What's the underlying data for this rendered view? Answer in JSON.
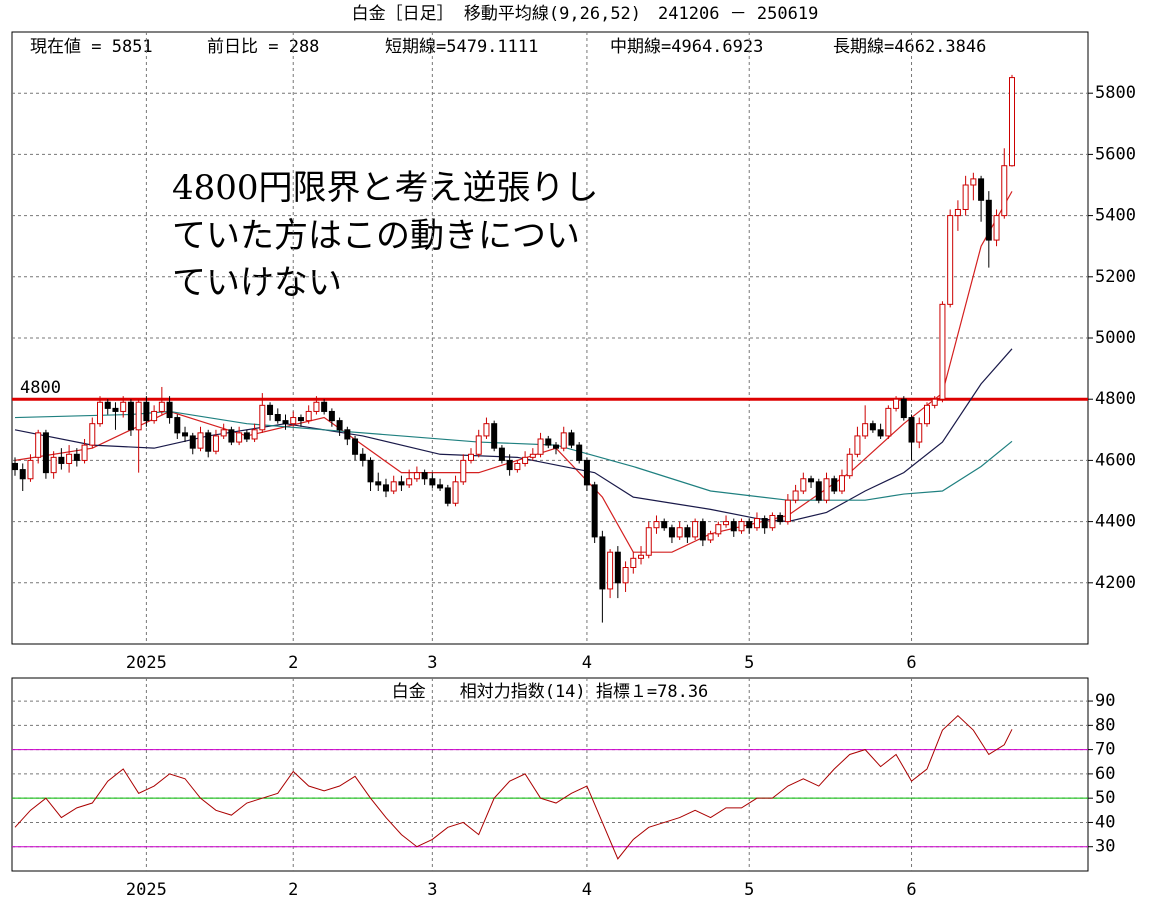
{
  "chart_data": [
    {
      "type": "candlestick",
      "title": "白金［日足］ 移動平均線(9,26,52)　241206 － 250619",
      "info": [
        "現在値 = 5851",
        "前日比 = 288",
        "短期線=5479.1111",
        "中期線=4964.6923",
        "長期線=4662.3846"
      ],
      "annotation": [
        "4800円限界と考え逆張りし",
        "ていた方はこの動きについ",
        "ていけない"
      ],
      "ohlc": [
        [
          4590,
          4610,
          4550,
          4570
        ],
        [
          4570,
          4590,
          4500,
          4540
        ],
        [
          4540,
          4620,
          4530,
          4600
        ],
        [
          4610,
          4700,
          4590,
          4690
        ],
        [
          4690,
          4700,
          4540,
          4560
        ],
        [
          4560,
          4630,
          4540,
          4610
        ],
        [
          4610,
          4640,
          4570,
          4590
        ],
        [
          4590,
          4650,
          4560,
          4620
        ],
        [
          4620,
          4640,
          4580,
          4600
        ],
        [
          4600,
          4670,
          4590,
          4650
        ],
        [
          4650,
          4740,
          4640,
          4720
        ],
        [
          4720,
          4810,
          4710,
          4790
        ],
        [
          4790,
          4800,
          4750,
          4770
        ],
        [
          4770,
          4790,
          4700,
          4760
        ],
        [
          4760,
          4810,
          4740,
          4790
        ],
        [
          4790,
          4800,
          4680,
          4700
        ],
        [
          4700,
          4800,
          4560,
          4790
        ],
        [
          4790,
          4810,
          4710,
          4730
        ],
        [
          4730,
          4780,
          4720,
          4760
        ],
        [
          4760,
          4840,
          4750,
          4790
        ],
        [
          4790,
          4810,
          4720,
          4740
        ],
        [
          4740,
          4750,
          4670,
          4690
        ],
        [
          4690,
          4710,
          4660,
          4680
        ],
        [
          4680,
          4690,
          4620,
          4640
        ],
        [
          4640,
          4710,
          4630,
          4690
        ],
        [
          4690,
          4700,
          4610,
          4630
        ],
        [
          4630,
          4700,
          4620,
          4680
        ],
        [
          4680,
          4720,
          4670,
          4700
        ],
        [
          4700,
          4710,
          4650,
          4660
        ],
        [
          4660,
          4710,
          4650,
          4690
        ],
        [
          4690,
          4700,
          4660,
          4670
        ],
        [
          4670,
          4720,
          4660,
          4700
        ],
        [
          4700,
          4820,
          4690,
          4780
        ],
        [
          4780,
          4790,
          4730,
          4750
        ],
        [
          4750,
          4770,
          4720,
          4730
        ],
        [
          4730,
          4750,
          4700,
          4720
        ],
        [
          4720,
          4760,
          4710,
          4740
        ],
        [
          4740,
          4750,
          4710,
          4730
        ],
        [
          4730,
          4780,
          4720,
          4760
        ],
        [
          4760,
          4810,
          4750,
          4790
        ],
        [
          4790,
          4800,
          4750,
          4760
        ],
        [
          4760,
          4770,
          4710,
          4730
        ],
        [
          4730,
          4740,
          4680,
          4700
        ],
        [
          4700,
          4710,
          4650,
          4670
        ],
        [
          4670,
          4680,
          4600,
          4620
        ],
        [
          4620,
          4640,
          4580,
          4600
        ],
        [
          4600,
          4610,
          4500,
          4530
        ],
        [
          4530,
          4560,
          4500,
          4520
        ],
        [
          4520,
          4540,
          4480,
          4500
        ],
        [
          4500,
          4550,
          4490,
          4530
        ],
        [
          4530,
          4550,
          4500,
          4520
        ],
        [
          4520,
          4570,
          4510,
          4540
        ],
        [
          4540,
          4580,
          4530,
          4560
        ],
        [
          4560,
          4570,
          4520,
          4540
        ],
        [
          4540,
          4560,
          4510,
          4520
        ],
        [
          4520,
          4540,
          4500,
          4510
        ],
        [
          4510,
          4520,
          4450,
          4460
        ],
        [
          4460,
          4550,
          4450,
          4530
        ],
        [
          4530,
          4620,
          4520,
          4600
        ],
        [
          4600,
          4640,
          4590,
          4620
        ],
        [
          4620,
          4700,
          4610,
          4680
        ],
        [
          4680,
          4740,
          4670,
          4720
        ],
        [
          4720,
          4730,
          4630,
          4640
        ],
        [
          4640,
          4650,
          4590,
          4600
        ],
        [
          4600,
          4620,
          4550,
          4570
        ],
        [
          4570,
          4600,
          4560,
          4590
        ],
        [
          4590,
          4630,
          4580,
          4610
        ],
        [
          4610,
          4640,
          4600,
          4620
        ],
        [
          4620,
          4690,
          4610,
          4670
        ],
        [
          4670,
          4680,
          4640,
          4650
        ],
        [
          4650,
          4660,
          4620,
          4640
        ],
        [
          4640,
          4710,
          4630,
          4690
        ],
        [
          4690,
          4700,
          4640,
          4650
        ],
        [
          4650,
          4660,
          4590,
          4600
        ],
        [
          4600,
          4610,
          4500,
          4520
        ],
        [
          4520,
          4530,
          4330,
          4350
        ],
        [
          4350,
          4370,
          4070,
          4180
        ],
        [
          4180,
          4310,
          4150,
          4300
        ],
        [
          4300,
          4320,
          4150,
          4200
        ],
        [
          4200,
          4270,
          4170,
          4250
        ],
        [
          4250,
          4300,
          4230,
          4280
        ],
        [
          4280,
          4320,
          4260,
          4290
        ],
        [
          4290,
          4400,
          4280,
          4380
        ],
        [
          4380,
          4420,
          4360,
          4400
        ],
        [
          4400,
          4410,
          4370,
          4380
        ],
        [
          4380,
          4390,
          4330,
          4350
        ],
        [
          4350,
          4400,
          4340,
          4380
        ],
        [
          4380,
          4390,
          4330,
          4350
        ],
        [
          4350,
          4410,
          4340,
          4400
        ],
        [
          4400,
          4410,
          4320,
          4340
        ],
        [
          4340,
          4370,
          4330,
          4360
        ],
        [
          4360,
          4400,
          4350,
          4390
        ],
        [
          4390,
          4420,
          4380,
          4400
        ],
        [
          4400,
          4410,
          4350,
          4370
        ],
        [
          4370,
          4410,
          4360,
          4400
        ],
        [
          4400,
          4410,
          4360,
          4380
        ],
        [
          4380,
          4430,
          4370,
          4410
        ],
        [
          4410,
          4420,
          4360,
          4380
        ],
        [
          4380,
          4430,
          4370,
          4420
        ],
        [
          4420,
          4430,
          4390,
          4400
        ],
        [
          4400,
          4490,
          4390,
          4470
        ],
        [
          4470,
          4520,
          4460,
          4500
        ],
        [
          4500,
          4560,
          4490,
          4540
        ],
        [
          4540,
          4550,
          4510,
          4530
        ],
        [
          4530,
          4540,
          4460,
          4470
        ],
        [
          4470,
          4560,
          4460,
          4540
        ],
        [
          4540,
          4550,
          4490,
          4500
        ],
        [
          4500,
          4570,
          4490,
          4550
        ],
        [
          4550,
          4640,
          4540,
          4620
        ],
        [
          4620,
          4710,
          4610,
          4680
        ],
        [
          4680,
          4780,
          4670,
          4720
        ],
        [
          4720,
          4730,
          4690,
          4700
        ],
        [
          4700,
          4720,
          4670,
          4680
        ],
        [
          4680,
          4780,
          4670,
          4770
        ],
        [
          4770,
          4810,
          4760,
          4800
        ],
        [
          4800,
          4810,
          4730,
          4740
        ],
        [
          4740,
          4750,
          4600,
          4660
        ],
        [
          4660,
          4740,
          4640,
          4720
        ],
        [
          4720,
          4790,
          4710,
          4780
        ],
        [
          4780,
          4810,
          4770,
          4800
        ],
        [
          4800,
          5120,
          4790,
          5110
        ],
        [
          5110,
          5420,
          5100,
          5400
        ],
        [
          5400,
          5450,
          5350,
          5420
        ],
        [
          5420,
          5530,
          5400,
          5500
        ],
        [
          5500,
          5540,
          5450,
          5520
        ],
        [
          5520,
          5530,
          5380,
          5450
        ],
        [
          5450,
          5480,
          5230,
          5320
        ],
        [
          5320,
          5420,
          5300,
          5400
        ],
        [
          5400,
          5620,
          5390,
          5563
        ],
        [
          5563,
          5860,
          5560,
          5851
        ]
      ],
      "up_color": "#cc0000",
      "down_color": "#000000",
      "series": [
        {
          "color": "#d42020",
          "x": [
            0,
            10,
            20,
            30,
            40,
            50,
            60,
            70,
            76,
            80,
            85,
            90,
            100,
            108,
            115,
            120,
            125,
            129
          ],
          "values": [
            4600,
            4640,
            4760,
            4680,
            4740,
            4560,
            4560,
            4640,
            4480,
            4300,
            4300,
            4360,
            4420,
            4560,
            4720,
            4820,
            5300,
            5479.1111
          ]
        },
        {
          "color": "#1a1a4a",
          "x": [
            0,
            10,
            18,
            25,
            35,
            45,
            55,
            65,
            75,
            80,
            85,
            90,
            96,
            100,
            105,
            110,
            115,
            120,
            125,
            129
          ],
          "values": [
            4700,
            4650,
            4640,
            4680,
            4720,
            4680,
            4620,
            4610,
            4560,
            4480,
            4460,
            4440,
            4410,
            4400,
            4430,
            4500,
            4560,
            4660,
            4850,
            4964.6923
          ]
        },
        {
          "color": "#1f8080",
          "x": [
            0,
            15,
            20,
            30,
            40,
            50,
            60,
            70,
            80,
            90,
            100,
            110,
            115,
            120,
            125,
            129
          ],
          "values": [
            4740,
            4750,
            4760,
            4720,
            4700,
            4680,
            4660,
            4650,
            4580,
            4500,
            4470,
            4470,
            4490,
            4500,
            4580,
            4662.3846
          ]
        }
      ],
      "reference_line": 4800,
      "reference_color": "#dd0000",
      "ylim": [
        4000,
        6000
      ],
      "yticks": [
        4200,
        4400,
        4600,
        4800,
        5000,
        5200,
        5400,
        5600,
        5800
      ],
      "xlim": [
        0,
        129
      ],
      "xticks": [
        {
          "value": 17,
          "label": "2025"
        },
        {
          "value": 36,
          "label": "2"
        },
        {
          "value": 54,
          "label": "3"
        },
        {
          "value": 74,
          "label": "4"
        },
        {
          "value": 95,
          "label": "5"
        },
        {
          "value": 116,
          "label": "6"
        }
      ],
      "grid": true
    },
    {
      "type": "line",
      "title": "白金　　相対力指数(14) 指標１=78.36",
      "color": "#aa0000",
      "x": [
        0,
        2,
        4,
        6,
        8,
        10,
        12,
        14,
        16,
        18,
        20,
        22,
        24,
        26,
        28,
        30,
        32,
        34,
        36,
        38,
        40,
        42,
        44,
        46,
        48,
        50,
        52,
        54,
        56,
        58,
        60,
        62,
        64,
        66,
        68,
        70,
        72,
        74,
        76,
        78,
        80,
        82,
        84,
        86,
        88,
        90,
        92,
        94,
        96,
        98,
        100,
        102,
        104,
        106,
        108,
        110,
        112,
        114,
        116,
        118,
        120,
        122,
        124,
        126,
        128,
        129
      ],
      "values": [
        38,
        45,
        50,
        42,
        46,
        48,
        57,
        62,
        52,
        55,
        60,
        58,
        50,
        45,
        43,
        48,
        50,
        52,
        61,
        55,
        53,
        55,
        59,
        50,
        42,
        35,
        30,
        33,
        38,
        40,
        35,
        50,
        57,
        60,
        50,
        48,
        52,
        55,
        40,
        25,
        33,
        38,
        40,
        42,
        45,
        42,
        46,
        46,
        50,
        50,
        55,
        58,
        55,
        62,
        68,
        70,
        63,
        68,
        57,
        62,
        78,
        84,
        78,
        68,
        72,
        78.36
      ],
      "levels": [
        {
          "value": 30,
          "color": "#cc00cc"
        },
        {
          "value": 50,
          "color": "#00bb00"
        },
        {
          "value": 70,
          "color": "#cc00cc"
        }
      ],
      "ylim": [
        20,
        99.5
      ],
      "yticks": [
        30,
        40,
        50,
        60,
        70,
        80,
        90
      ],
      "xlim": [
        0,
        129
      ],
      "xticks": [
        {
          "value": 17,
          "label": "2025"
        },
        {
          "value": 36,
          "label": "2"
        },
        {
          "value": 54,
          "label": "3"
        },
        {
          "value": 74,
          "label": "4"
        },
        {
          "value": 95,
          "label": "5"
        },
        {
          "value": 116,
          "label": "6"
        }
      ],
      "grid": true
    }
  ]
}
